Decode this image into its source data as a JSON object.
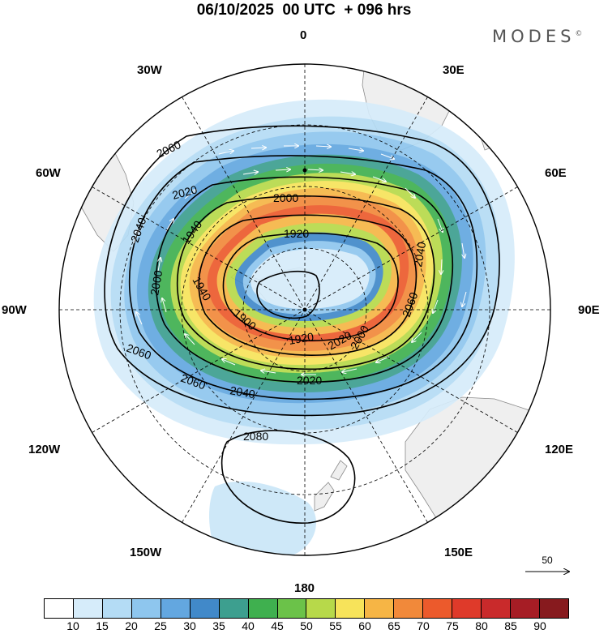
{
  "title": "06/10/2025  00 UTC  + 096 hrs",
  "brand": "MODES",
  "brand_mark": "©",
  "longitude_labels": {
    "top": "0",
    "top_left": "30W",
    "top_right": "30E",
    "upper_left": "60W",
    "upper_right": "60E",
    "left": "90W",
    "right": "90E",
    "lower_left": "120W",
    "lower_right": "120E",
    "bottom_left": "150W",
    "bottom_right": "150E",
    "bottom": "180"
  },
  "contour_labels": {
    "c2080": "2080",
    "c2060_nw": "2060",
    "c2060_sw": "2060",
    "c2060_s": "2060",
    "c2060_e": "2060",
    "c2040_w": "2040",
    "c2040_s": "2040",
    "c2040_e": "2040",
    "c2020_n": "2020",
    "c2020_s": "2020",
    "c2020_e": "2020",
    "c2000_n": "2000",
    "c2000_w": "2000",
    "c2000_se": "2000",
    "c1940_w": "1940",
    "c1940_sw": "1940",
    "c1920_n": "1920",
    "c1920_s": "1920",
    "c1900": "1900"
  },
  "wind_speed_colors": [
    "#ffffff",
    "#d6ecfa",
    "#b4dcf5",
    "#8ec6ee",
    "#63a7e0",
    "#4189c9",
    "#3d9f8f",
    "#3fb04f",
    "#6bc249",
    "#b7d94a",
    "#f7e35a",
    "#f6b545",
    "#f1893a",
    "#ec5a2c",
    "#df3a2a",
    "#c92a2b",
    "#a61d25",
    "#871a1e"
  ],
  "colorbar_ticks": [
    "10",
    "15",
    "20",
    "25",
    "30",
    "35",
    "40",
    "45",
    "50",
    "55",
    "60",
    "65",
    "70",
    "75",
    "80",
    "85",
    "90"
  ],
  "vector_reference": "50",
  "ocean_color": "#ffffff",
  "land_color": "#efefef"
}
